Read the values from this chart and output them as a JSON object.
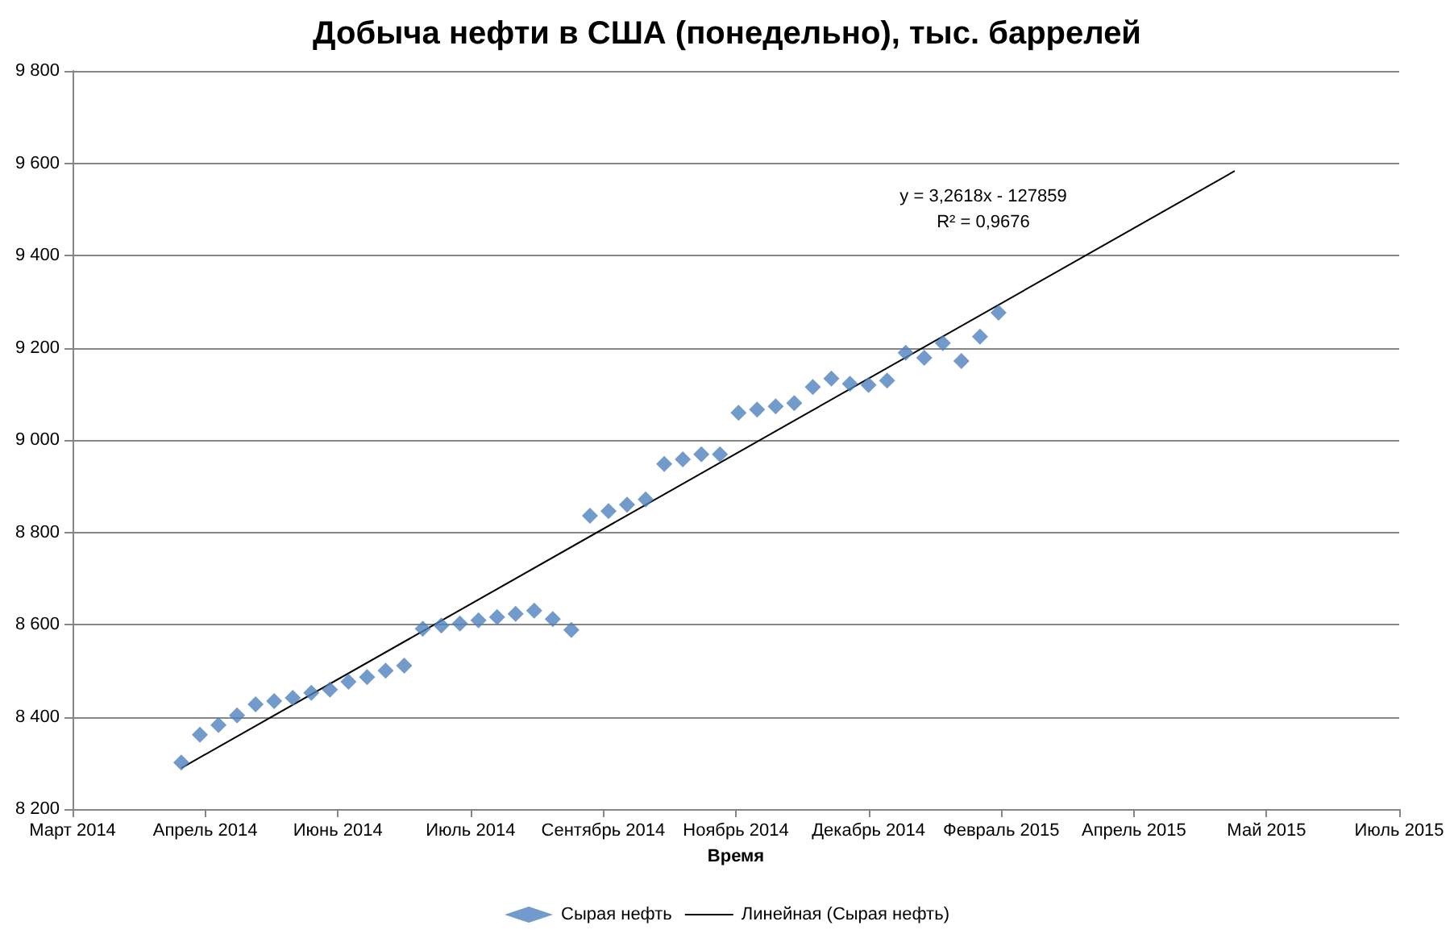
{
  "chart_data": {
    "type": "scatter",
    "title": "Добыча нефти в США (понедельно), тыс. баррелей",
    "xlabel": "Время",
    "x": [
      "2014-04-11",
      "2014-04-18",
      "2014-04-25",
      "2014-05-02",
      "2014-05-09",
      "2014-05-16",
      "2014-05-23",
      "2014-05-30",
      "2014-06-06",
      "2014-06-13",
      "2014-06-20",
      "2014-06-27",
      "2014-07-04",
      "2014-07-11",
      "2014-07-18",
      "2014-07-25",
      "2014-08-01",
      "2014-08-08",
      "2014-08-15",
      "2014-08-22",
      "2014-08-29",
      "2014-09-05",
      "2014-09-12",
      "2014-09-19",
      "2014-09-26",
      "2014-10-03",
      "2014-10-10",
      "2014-10-17",
      "2014-10-24",
      "2014-10-31",
      "2014-11-07",
      "2014-11-14",
      "2014-11-21",
      "2014-11-28",
      "2014-12-05",
      "2014-12-12",
      "2014-12-19",
      "2014-12-26",
      "2015-01-02",
      "2015-01-09",
      "2015-01-16",
      "2015-01-23",
      "2015-01-30",
      "2015-02-06",
      "2015-02-13"
    ],
    "series": [
      {
        "name": "Сырая нефть",
        "color": "#4f81bd",
        "marker": "diamond",
        "values": [
          8301,
          8361,
          8382,
          8403,
          8427,
          8434,
          8441,
          8452,
          8459,
          8476,
          8486,
          8500,
          8511,
          8591,
          8598,
          8602,
          8609,
          8616,
          8623,
          8630,
          8612,
          8588,
          8836,
          8846,
          8860,
          8871,
          8948,
          8958,
          8969,
          8969,
          9059,
          9066,
          9073,
          9080,
          9115,
          9133,
          9122,
          9119,
          9129,
          9189,
          9178,
          9210,
          9171,
          9224,
          9276
        ]
      },
      {
        "name": "Линейная (Сырая нефть)",
        "type": "line",
        "color": "#000000",
        "marker": "none",
        "x": [
          "2014-04-11",
          "2015-05-13"
        ],
        "values": [
          8289,
          9583
        ]
      }
    ],
    "annotations": [
      "y = 3,2618x - 127859",
      "R² = 0,9676"
    ],
    "xlim": [
      "2014-03-01",
      "2015-07-14"
    ],
    "xticks": [
      {
        "value": "2014-03-01",
        "label": "Март 2014"
      },
      {
        "value": "2014-04-20",
        "label": "Апрель 2014"
      },
      {
        "value": "2014-06-09",
        "label": "Июнь 2014"
      },
      {
        "value": "2014-07-29",
        "label": "Июль 2014"
      },
      {
        "value": "2014-09-17",
        "label": "Сентябрь 2014"
      },
      {
        "value": "2014-11-06",
        "label": "Ноябрь 2014"
      },
      {
        "value": "2014-12-26",
        "label": "Декабрь 2014"
      },
      {
        "value": "2015-02-14",
        "label": "Февраль 2015"
      },
      {
        "value": "2015-04-05",
        "label": "Апрель 2015"
      },
      {
        "value": "2015-05-25",
        "label": "Май 2015"
      },
      {
        "value": "2015-07-14",
        "label": "Июль 2015"
      }
    ],
    "ylim": [
      8200,
      9800
    ],
    "yticks": [
      {
        "value": 8200,
        "label": "8 200"
      },
      {
        "value": 8400,
        "label": "8 400"
      },
      {
        "value": 8600,
        "label": "8 600"
      },
      {
        "value": 8800,
        "label": "8 800"
      },
      {
        "value": 9000,
        "label": "9 000"
      },
      {
        "value": 9200,
        "label": "9 200"
      },
      {
        "value": 9400,
        "label": "9 400"
      },
      {
        "value": 9600,
        "label": "9 600"
      },
      {
        "value": 9800,
        "label": "9 800"
      }
    ],
    "grid": "y",
    "legend": "bottom"
  }
}
